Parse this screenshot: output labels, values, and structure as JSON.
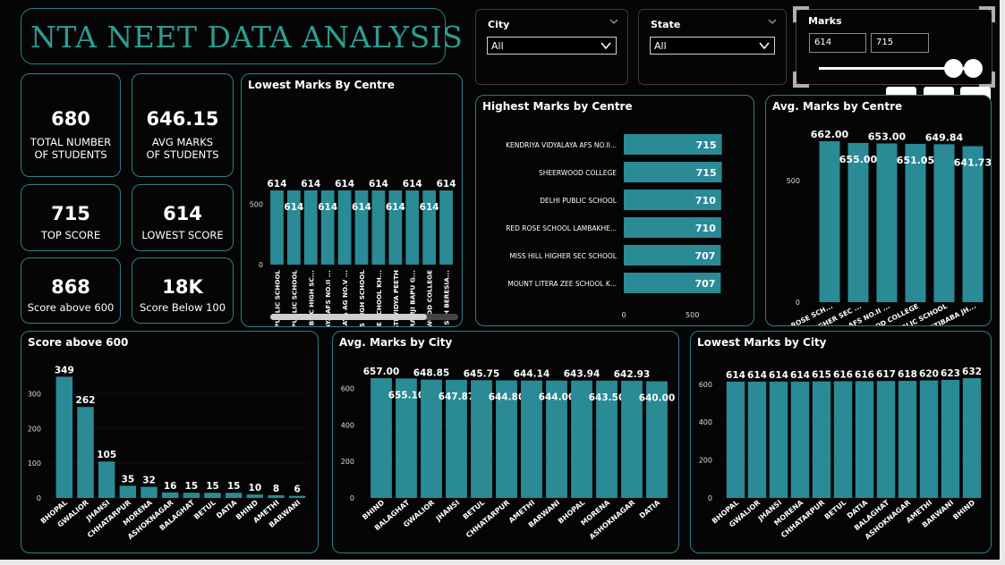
{
  "dashboard_title": "NTA NEET DATA ANALYSIS",
  "kpis": [
    {
      "value": "680",
      "label": "TOTAL NUMBER OF STUDENTS"
    },
    {
      "value": "646.15",
      "label": "AVG MARKS OF STUDENTS"
    },
    {
      "value": "715",
      "label": "TOP SCORE"
    },
    {
      "value": "614",
      "label": "LOWEST SCORE"
    },
    {
      "value": "868",
      "label": "Score above 600"
    },
    {
      "value": "18K",
      "label": "Score Below 100"
    }
  ],
  "slicers": {
    "city": {
      "label": "City",
      "selected": "All"
    },
    "state": {
      "label": "State",
      "selected": "All"
    },
    "marks": {
      "label": "Marks",
      "min": "614",
      "max": "715",
      "range_fraction": [
        1.0,
        1.0
      ]
    }
  },
  "visual_header_icons": [
    "filter-icon",
    "focus-mode-icon",
    "more-options-icon"
  ],
  "colors": {
    "bar": "#2a8a96",
    "border": "#2d7f86",
    "title": "#2e9c92",
    "background": "#050505"
  },
  "chart_data": [
    {
      "id": "lowest-marks-by-centre",
      "type": "bar",
      "title": "Lowest Marks By Centre",
      "categories": [
        "SDVM PUBLIC SCHOOL",
        "DELHI PUBLIC SCHOOL",
        "GREEN WOOD PUBLIC HIGH SC...",
        "KENDRIYA VIDYALAYA AFS NO.II ...",
        "KENDRIYA VIDYALAYA AG NO.V ...",
        "LITTLE ANGELS HIGH SCHOOL",
        "MOUNT LITERA ZEE SCHOOL KH...",
        "PRAGATI VIDYA PEETH",
        "SANT SHRI ASHARAMJI BAPU G...",
        "SHEERWOOD COLLEGE",
        "ST GEORGE CO-ED SCH BERESIA..."
      ],
      "values": [
        614,
        614,
        614,
        614,
        614,
        614,
        614,
        614,
        614,
        614,
        614
      ],
      "data_labels": [
        "614",
        "614",
        "614",
        "614",
        "614",
        "614",
        "614",
        "614",
        "614",
        "614",
        "614"
      ],
      "yticks": [
        "0",
        "500"
      ],
      "ylim": [
        0,
        614
      ]
    },
    {
      "id": "highest-marks-by-centre",
      "type": "bar",
      "orientation": "horizontal",
      "title": "Highest Marks by Centre",
      "categories": [
        "KENDRIYA VIDYALAYA AFS NO.II...",
        "SHEERWOOD COLLEGE",
        "DELHI PUBLIC SCHOOL",
        "RED ROSE SCHOOL LAMBAKHE...",
        "MISS HILL HIGHER SEC SCHOOL",
        "MOUNT LITERA ZEE SCHOOL K..."
      ],
      "values": [
        715,
        715,
        710,
        710,
        707,
        707
      ],
      "data_labels": [
        "715",
        "715",
        "710",
        "710",
        "707",
        "707"
      ],
      "xticks": [
        "0",
        "500"
      ],
      "xlim": [
        0,
        750
      ]
    },
    {
      "id": "avg-marks-by-centre",
      "type": "bar",
      "title": "Avg. Marks by Centre",
      "categories": [
        "RED ROSE SCH...",
        "MISS HILL HIGHER SEC ...",
        "KENDRIYA VIDYALAYA AFS NO.II ...",
        "SHEERWOOD COLLEGE",
        "DELHI PUBLIC SCHOOL",
        "MOUNT LITERA ZEE SCHOOL KHATIBABA JH..."
      ],
      "values": [
        662.0,
        655.0,
        653.0,
        651.05,
        649.84,
        641.73
      ],
      "data_labels": [
        "662.00",
        "655.00",
        "653.00",
        "651.05",
        "649.84",
        "641.73"
      ],
      "yticks": [
        "0",
        "500"
      ],
      "ylim": [
        0,
        662
      ]
    },
    {
      "id": "score-above-600",
      "type": "bar",
      "title": "Score above 600",
      "categories": [
        "BHOPAL",
        "GWALIOR",
        "JHANSI",
        "CHHATARPUR",
        "MORENA",
        "ASHOKNAGAR",
        "BALAGHAT",
        "BETUL",
        "DATIA",
        "BHIND",
        "AMETHI",
        "BARWANI"
      ],
      "values": [
        349,
        262,
        105,
        35,
        32,
        16,
        15,
        15,
        15,
        10,
        8,
        6
      ],
      "data_labels": [
        "349",
        "262",
        "105",
        "35",
        "32",
        "16",
        "15",
        "15",
        "15",
        "10",
        "8",
        "6"
      ],
      "yticks": [
        "0",
        "100",
        "200",
        "300"
      ],
      "ylim": [
        0,
        350
      ]
    },
    {
      "id": "avg-marks-by-city",
      "type": "bar",
      "title": "Avg. Marks by City",
      "categories": [
        "BHIND",
        "BALAGHAT",
        "GWALIOR",
        "JHANSI",
        "BETUL",
        "CHHATARPUR",
        "AMETHI",
        "BARWANI",
        "BHOPAL",
        "MORENA",
        "ASHOKNAGAR",
        "DATIA"
      ],
      "values": [
        657.0,
        655.1,
        648.85,
        647.87,
        645.75,
        644.8,
        644.14,
        644.0,
        643.94,
        643.5,
        642.93,
        640.0
      ],
      "data_labels": [
        "657.00",
        "655.10",
        "648.85",
        "647.87",
        "645.75",
        "644.80",
        "644.14",
        "644.00",
        "643.94",
        "643.50",
        "642.93",
        "640.00"
      ],
      "yticks": [
        "0",
        "200",
        "400",
        "600"
      ],
      "ylim": [
        0,
        657
      ]
    },
    {
      "id": "lowest-marks-by-city",
      "type": "bar",
      "title": "Lowest Marks by City",
      "categories": [
        "BHOPAL",
        "GWALIOR",
        "JHANSI",
        "MORENA",
        "CHHATARPUR",
        "BETUL",
        "DATIA",
        "BALAGHAT",
        "ASHOKNAGAR",
        "AMETHI",
        "BARWANI",
        "BHIND"
      ],
      "values": [
        614,
        614,
        614,
        614,
        615,
        616,
        616,
        617,
        618,
        620,
        623,
        632
      ],
      "data_labels": [
        "614",
        "614",
        "614",
        "614",
        "615",
        "616",
        "616",
        "617",
        "618",
        "620",
        "623",
        "632"
      ],
      "yticks": [
        "0",
        "200",
        "400",
        "600"
      ],
      "ylim": [
        0,
        632
      ]
    }
  ]
}
